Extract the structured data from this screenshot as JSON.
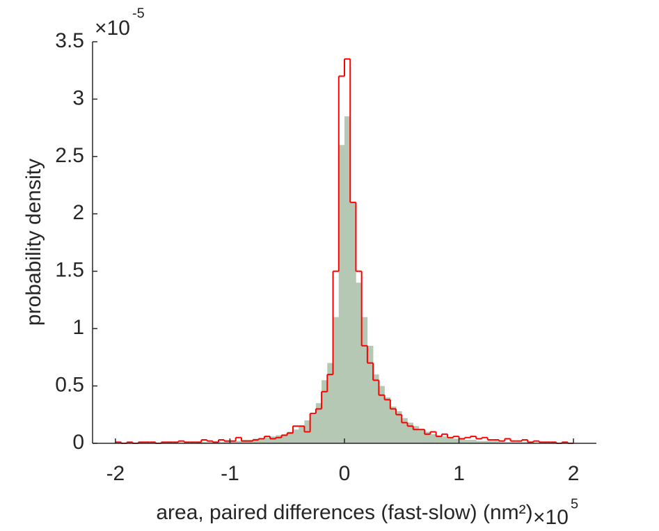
{
  "chart_data": {
    "type": "histogram",
    "xlabel": "area, paired differences (fast-slow) (nm²)",
    "ylabel": "probability density",
    "x_multiplier": {
      "base": "×10",
      "exponent": "5"
    },
    "y_multiplier": {
      "base": "×10",
      "exponent": "-5"
    },
    "bins": [
      -2,
      -1.95,
      -1.9,
      -1.85,
      -1.8,
      -1.75,
      -1.7,
      -1.65,
      -1.6,
      -1.55,
      -1.5,
      -1.45,
      -1.4,
      -1.35,
      -1.3,
      -1.25,
      -1.2,
      -1.15,
      -1.1,
      -1.05,
      -1,
      -0.95,
      -0.9,
      -0.85,
      -0.8,
      -0.75,
      -0.7,
      -0.65,
      -0.6,
      -0.55,
      -0.5,
      -0.45,
      -0.4,
      -0.35,
      -0.3,
      -0.25,
      -0.2,
      -0.15,
      -0.1,
      -0.05,
      0,
      0.05,
      0.1,
      0.15,
      0.2,
      0.25,
      0.3,
      0.35,
      0.4,
      0.45,
      0.5,
      0.55,
      0.6,
      0.65,
      0.7,
      0.75,
      0.8,
      0.85,
      0.9,
      0.95,
      1,
      1.05,
      1.1,
      1.15,
      1.2,
      1.25,
      1.3,
      1.35,
      1.4,
      1.45,
      1.5,
      1.55,
      1.6,
      1.65,
      1.7,
      1.75,
      1.8,
      1.85,
      1.9,
      1.95,
      2
    ],
    "series": [
      {
        "style": "bar",
        "color": "#b4c8b4",
        "values": [
          0,
          0,
          0,
          0,
          0,
          0,
          0,
          0,
          0,
          0,
          0,
          0,
          0,
          0,
          0.01,
          0.01,
          0.01,
          0.01,
          0.01,
          0.02,
          0.02,
          0.02,
          0.03,
          0.03,
          0.04,
          0.04,
          0.05,
          0.06,
          0.07,
          0.08,
          0.1,
          0.12,
          0.15,
          0.2,
          0.25,
          0.35,
          0.55,
          0.7,
          1.1,
          2.6,
          2.85,
          2.1,
          1.4,
          1.1,
          0.85,
          0.6,
          0.5,
          0.4,
          0.32,
          0.28,
          0.22,
          0.18,
          0.15,
          0.12,
          0.1,
          0.08,
          0.07,
          0.06,
          0.05,
          0.04,
          0.04,
          0.03,
          0.03,
          0.02,
          0.02,
          0.02,
          0.02,
          0.01,
          0.01,
          0.01,
          0.01,
          0.01,
          0.01,
          0,
          0,
          0,
          0,
          0,
          0,
          0
        ]
      },
      {
        "style": "step",
        "color": "#ff0000",
        "values": [
          0.01,
          0,
          0.01,
          0,
          0.01,
          0.01,
          0.01,
          0,
          0.01,
          0.01,
          0.01,
          0.02,
          0.01,
          0.01,
          0.01,
          0.03,
          0.02,
          0.01,
          0.03,
          0.02,
          0.02,
          0.05,
          0.02,
          0.02,
          0.03,
          0.04,
          0.06,
          0.04,
          0.05,
          0.07,
          0.09,
          0.15,
          0.15,
          0.1,
          0.26,
          0.3,
          0.45,
          0.6,
          1.5,
          3.2,
          3.35,
          2.1,
          1.5,
          0.85,
          0.7,
          0.55,
          0.42,
          0.38,
          0.3,
          0.25,
          0.18,
          0.15,
          0.12,
          0.12,
          0.08,
          0.1,
          0.06,
          0.08,
          0.05,
          0.06,
          0.04,
          0.05,
          0.06,
          0.04,
          0.05,
          0.03,
          0.03,
          0.02,
          0.04,
          0.02,
          0.02,
          0.03,
          0.01,
          0.02,
          0.01,
          0.01,
          0.01,
          0,
          0.01,
          0
        ]
      }
    ],
    "xlim": [
      -2.2,
      2.2
    ],
    "xticks": [
      -2,
      -1,
      0,
      1,
      2
    ],
    "ylim": [
      0,
      3.5
    ],
    "yticks": [
      0,
      0.5,
      1,
      1.5,
      2,
      2.5,
      3,
      3.5
    ]
  }
}
